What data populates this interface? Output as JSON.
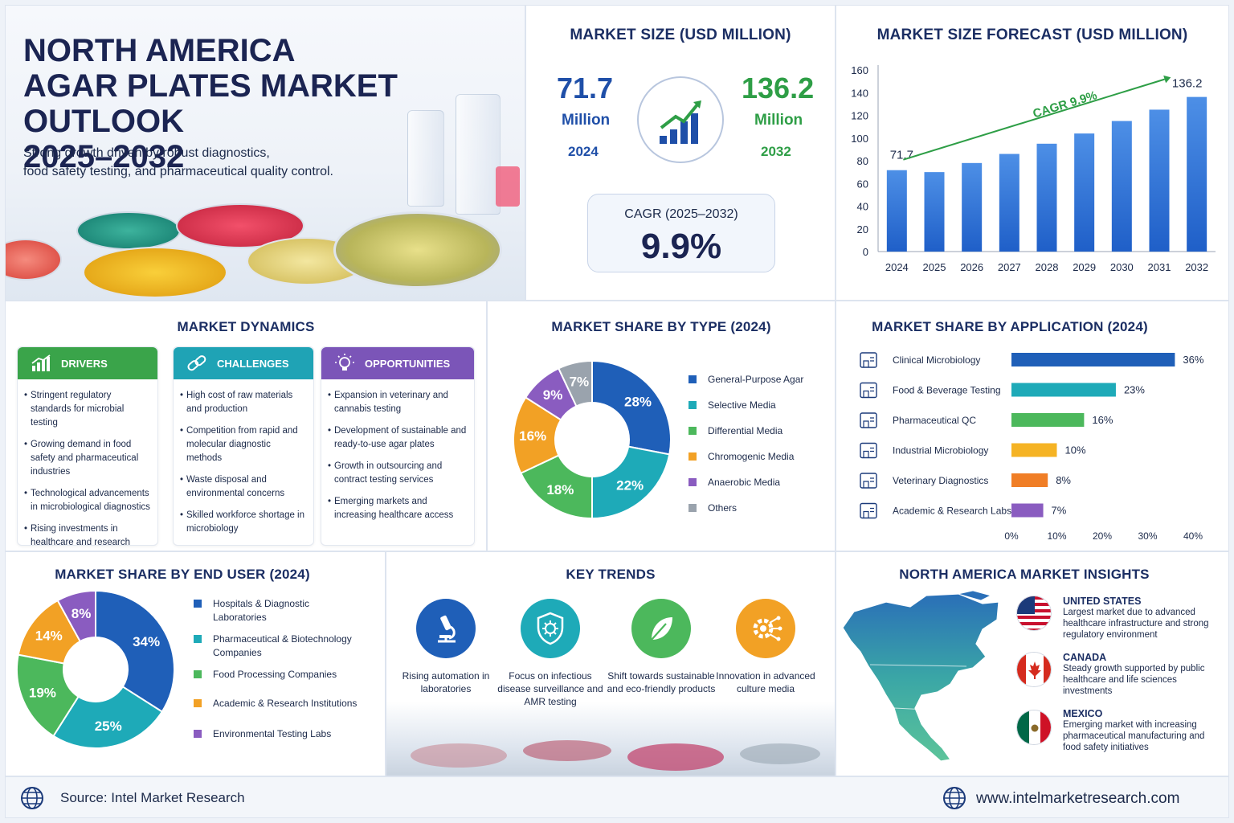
{
  "hero": {
    "title_lines": [
      "NORTH AMERICA",
      "AGAR PLATES MARKET OUTLOOK",
      "2025–2032"
    ],
    "subtitle_lines": [
      "Strong growth driven by robust diagnostics,",
      "food safety testing, and pharmaceutical quality control."
    ]
  },
  "market_size": {
    "title": "MARKET SIZE (USD MILLION)",
    "start_value": "71.7",
    "end_value": "136.2",
    "unit": "Million",
    "start_year": "2024",
    "end_year": "2032",
    "cagr_label": "CAGR (2025–2032)",
    "cagr_value": "9.9%"
  },
  "chart_data": [
    {
      "id": "forecast",
      "type": "bar",
      "title": "MARKET SIZE FORECAST (USD MILLION)",
      "categories": [
        "2024",
        "2025",
        "2026",
        "2027",
        "2028",
        "2029",
        "2030",
        "2031",
        "2032"
      ],
      "values": [
        71.7,
        70,
        78,
        86,
        95,
        104,
        115,
        125,
        136.2
      ],
      "ylim": [
        0,
        160
      ],
      "yticks": [
        0,
        20,
        40,
        60,
        80,
        100,
        120,
        140,
        160
      ],
      "data_labels": {
        "first": "71.7",
        "last": "136.2"
      },
      "annotation": "CAGR 9.9%"
    },
    {
      "id": "type",
      "type": "pie",
      "title": "MARKET SHARE BY TYPE (2024)",
      "labels": [
        "General-Purpose Agar",
        "Selective Media",
        "Differential Media",
        "Chromogenic Media",
        "Anaerobic Media",
        "Others"
      ],
      "values": [
        28,
        22,
        18,
        16,
        9,
        7
      ],
      "colors": [
        "#1f5fb8",
        "#1eaab8",
        "#4cb85c",
        "#f2a125",
        "#8a5cc0",
        "#9aa3ad"
      ]
    },
    {
      "id": "application",
      "type": "bar",
      "orientation": "horizontal",
      "title": "MARKET SHARE BY APPLICATION (2024)",
      "categories": [
        "Clinical Microbiology",
        "Food & Beverage Testing",
        "Pharmaceutical QC",
        "Industrial Microbiology",
        "Veterinary Diagnostics",
        "Academic & Research Labs"
      ],
      "values": [
        36,
        23,
        16,
        10,
        8,
        7
      ],
      "colors": [
        "#1f5fb8",
        "#1eaab8",
        "#4cb85c",
        "#f5b324",
        "#f07e26",
        "#8a5cc0"
      ],
      "xlim": [
        0,
        40
      ],
      "xticks": [
        "0%",
        "10%",
        "20%",
        "30%",
        "40%"
      ]
    },
    {
      "id": "end_user",
      "type": "pie",
      "title": "MARKET SHARE BY END USER (2024)",
      "labels": [
        "Hospitals & Diagnostic Laboratories",
        "Pharmaceutical & Biotechnology Companies",
        "Food Processing Companies",
        "Academic & Research Institutions",
        "Environmental Testing Labs"
      ],
      "values": [
        34,
        25,
        19,
        14,
        8
      ],
      "colors": [
        "#1f5fb8",
        "#1eaab8",
        "#4cb85c",
        "#f2a125",
        "#8a5cc0"
      ]
    }
  ],
  "dynamics": {
    "title": "MARKET DYNAMICS",
    "columns": [
      {
        "label": "DRIVERS",
        "color": "#3aa44a",
        "icon": "bar-growth-icon",
        "items": [
          "Stringent regulatory standards for microbial testing",
          "Growing demand in food safety and pharmaceutical industries",
          "Technological advancements in microbiological diagnostics",
          "Rising investments in healthcare and research laboratories"
        ]
      },
      {
        "label": "CHALLENGES",
        "color": "#1fa3b5",
        "icon": "chain-link-icon",
        "items": [
          "High cost of raw materials and production",
          "Competition from rapid and molecular diagnostic methods",
          "Waste disposal and environmental concerns",
          "Skilled workforce shortage in microbiology"
        ]
      },
      {
        "label": "OPPORTUNITIES",
        "color": "#7b55b8",
        "icon": "lightbulb-icon",
        "items": [
          "Expansion in veterinary and cannabis testing",
          "Development of sustainable and ready-to-use agar plates",
          "Growth in outsourcing and contract testing services",
          "Emerging markets and increasing healthcare access"
        ]
      }
    ]
  },
  "type_labels": [
    "28%",
    "22%",
    "18%",
    "16%",
    "9%",
    "7%"
  ],
  "app_labels": [
    "36%",
    "23%",
    "16%",
    "10%",
    "8%",
    "7%"
  ],
  "end_user_labels": [
    "34%",
    "25%",
    "19%",
    "14%",
    "8%"
  ],
  "trends": {
    "title": "KEY TRENDS",
    "items": [
      {
        "text": "Rising automation in laboratories",
        "color": "#1f5fb8",
        "icon": "microscope-icon"
      },
      {
        "text": "Focus on infectious disease surveillance and AMR testing",
        "color": "#1eaab8",
        "icon": "shield-virus-icon"
      },
      {
        "text": "Shift towards sustainable and eco-friendly products",
        "color": "#4cb85c",
        "icon": "leaf-icon"
      },
      {
        "text": "Innovation in advanced culture media",
        "color": "#f2a125",
        "icon": "gear-network-icon"
      }
    ]
  },
  "insights": {
    "title": "NORTH AMERICA MARKET INSIGHTS",
    "countries": [
      {
        "name": "UNITED STATES",
        "desc": "Largest market due to advanced healthcare infrastructure and strong regulatory environment",
        "icon": "us-flag-icon"
      },
      {
        "name": "CANADA",
        "desc": "Steady growth supported by public healthcare and life sciences investments",
        "icon": "canada-flag-icon"
      },
      {
        "name": "MEXICO",
        "desc": "Emerging market with increasing pharmaceutical manufacturing and food safety initiatives",
        "icon": "mexico-flag-icon"
      }
    ]
  },
  "footer": {
    "source": "Source: Intel Market Research",
    "website": "www.intelmarketresearch.com"
  }
}
